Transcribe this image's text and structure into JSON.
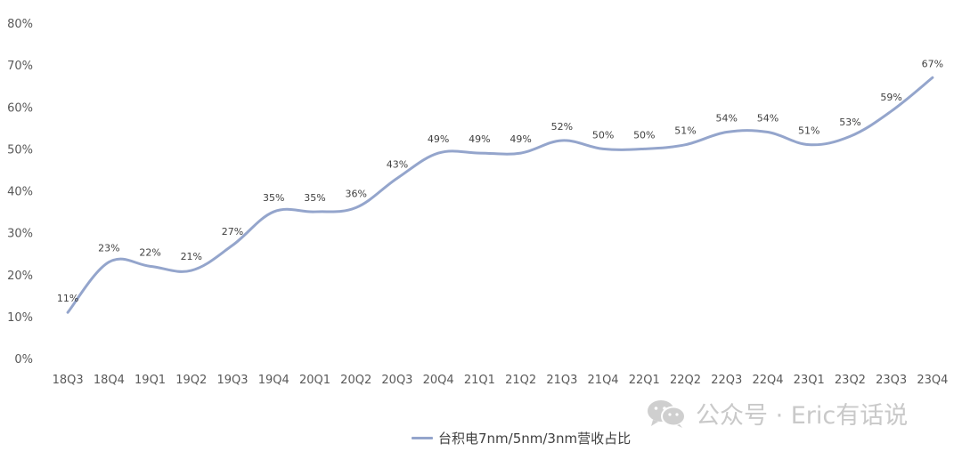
{
  "chart_data": {
    "type": "line",
    "categories": [
      "18Q3",
      "18Q4",
      "19Q1",
      "19Q2",
      "19Q3",
      "19Q4",
      "20Q1",
      "20Q2",
      "20Q3",
      "20Q4",
      "21Q1",
      "21Q2",
      "21Q3",
      "21Q4",
      "22Q1",
      "22Q2",
      "22Q3",
      "22Q4",
      "23Q1",
      "23Q2",
      "23Q3",
      "23Q4"
    ],
    "series": [
      {
        "name": "台积电7nm/5nm/3nm营收占比",
        "values": [
          11,
          23,
          22,
          21,
          27,
          35,
          35,
          36,
          43,
          49,
          49,
          49,
          52,
          50,
          50,
          51,
          54,
          54,
          51,
          53,
          59,
          67
        ],
        "labels": [
          "11%",
          "23%",
          "22%",
          "21%",
          "27%",
          "35%",
          "35%",
          "36%",
          "43%",
          "49%",
          "49%",
          "49%",
          "52%",
          "50%",
          "50%",
          "51%",
          "54%",
          "54%",
          "51%",
          "53%",
          "59%",
          "67%"
        ],
        "color": "#94a5cc"
      }
    ],
    "yticks": [
      "0%",
      "10%",
      "20%",
      "30%",
      "40%",
      "50%",
      "60%",
      "70%",
      "80%"
    ],
    "ylim": [
      0,
      80
    ],
    "grid": false,
    "smooth": true,
    "legend_position": "bottom"
  },
  "watermark": {
    "text": "公众号 · Eric有话说",
    "icon": "wechat-icon"
  },
  "legend": {
    "label": "台积电7nm/5nm/3nm营收占比"
  }
}
